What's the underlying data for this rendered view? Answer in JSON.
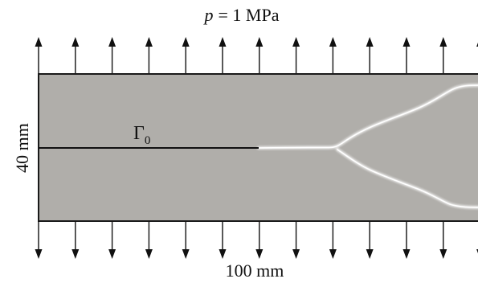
{
  "load_label": {
    "symbol": "p",
    "rest": "= 1 MPa"
  },
  "height_label": "40 mm",
  "width_label": "100 mm",
  "crack_label": {
    "symbol": "Γ",
    "subscript": "0"
  },
  "colors": {
    "plate_fill": "#b0aeaa",
    "plate_border": "#1a1a1a",
    "crack": "#111111",
    "fracture": "#ffffff",
    "arrows": "#111111",
    "text": "#111111"
  },
  "load_arrows": {
    "top_count": 13,
    "bottom_count": 13
  }
}
